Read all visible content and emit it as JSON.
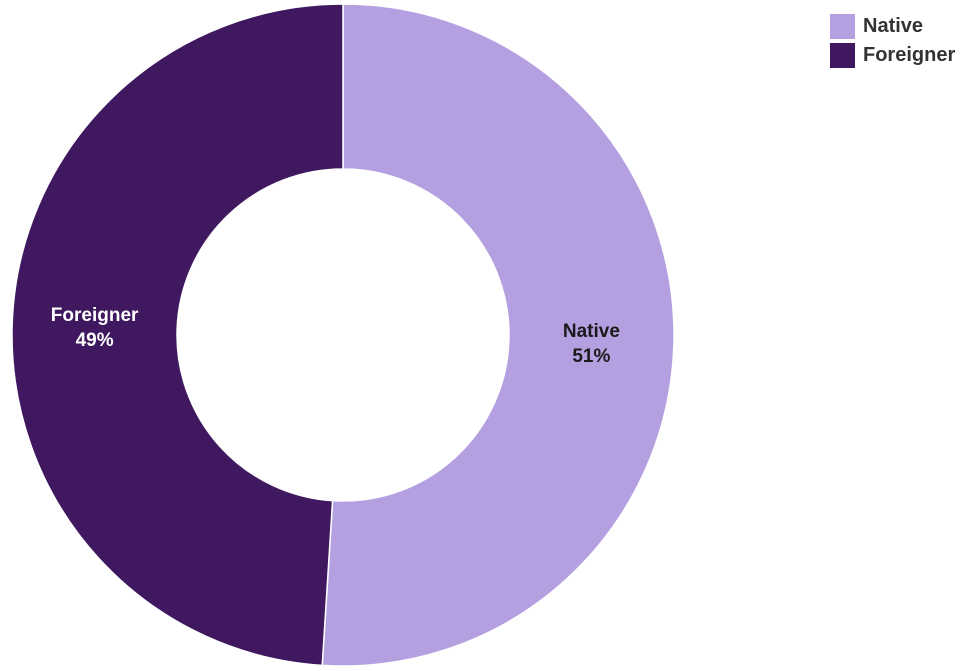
{
  "chart_data": {
    "type": "pie",
    "variant": "donut",
    "series": [
      {
        "name": "Native",
        "value": 51,
        "label": "Native",
        "percent_label": "51%",
        "color": "#b4a0e0",
        "text_color": "#1a1a1a"
      },
      {
        "name": "Foreigner",
        "value": 49,
        "label": "Foreigner",
        "percent_label": "49%",
        "color": "#3f1860",
        "text_color": "#ffffff"
      }
    ],
    "legend_position": "top-right",
    "title": ""
  }
}
